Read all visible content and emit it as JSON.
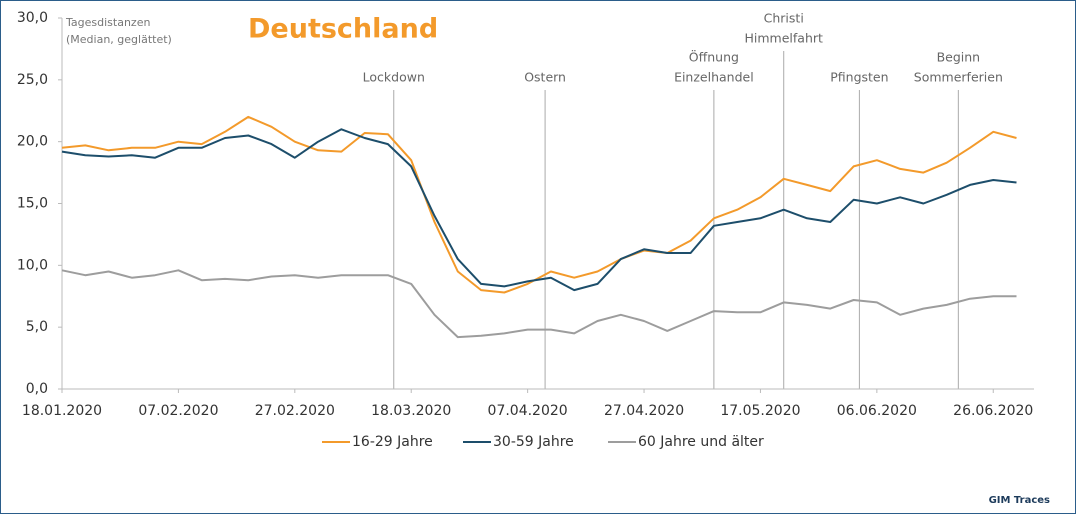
{
  "chart_data": {
    "type": "line",
    "title": "Deutschland",
    "y_axis_label": [
      "Tagesdistanzen",
      "(Median, geglättet)"
    ],
    "source": "GIM Traces",
    "x": [
      "18.01.2020",
      "22.01.2020",
      "26.01.2020",
      "30.01.2020",
      "03.02.2020",
      "07.02.2020",
      "11.02.2020",
      "15.02.2020",
      "19.02.2020",
      "23.02.2020",
      "27.02.2020",
      "02.03.2020",
      "06.03.2020",
      "10.03.2020",
      "14.03.2020",
      "18.03.2020",
      "22.03.2020",
      "26.03.2020",
      "30.03.2020",
      "03.04.2020",
      "07.04.2020",
      "11.04.2020",
      "15.04.2020",
      "19.04.2020",
      "23.04.2020",
      "27.04.2020",
      "01.05.2020",
      "05.05.2020",
      "09.05.2020",
      "13.05.2020",
      "17.05.2020",
      "21.05.2020",
      "25.05.2020",
      "29.05.2020",
      "02.06.2020",
      "06.06.2020",
      "10.06.2020",
      "14.06.2020",
      "18.06.2020",
      "22.06.2020",
      "26.06.2020",
      "30.06.2020"
    ],
    "series": [
      {
        "name": "16-29 Jahre",
        "color": "#f39a2b",
        "values": [
          19.5,
          19.7,
          19.3,
          19.5,
          19.5,
          20.0,
          19.8,
          20.8,
          22.0,
          21.2,
          20.0,
          19.3,
          19.2,
          20.7,
          20.6,
          18.5,
          13.5,
          9.5,
          8.0,
          7.8,
          8.5,
          9.5,
          9.0,
          9.5,
          10.5,
          11.2,
          11.0,
          12.0,
          13.8,
          14.5,
          15.5,
          17.0,
          16.5,
          16.0,
          18.0,
          18.5,
          17.8,
          17.5,
          18.3,
          19.5,
          20.8,
          20.3
        ]
      },
      {
        "name": "30-59 Jahre",
        "color": "#1d4e6b",
        "values": [
          19.2,
          18.9,
          18.8,
          18.9,
          18.7,
          19.5,
          19.5,
          20.3,
          20.5,
          19.8,
          18.7,
          20.0,
          21.0,
          20.3,
          19.8,
          18.0,
          14.0,
          10.5,
          8.5,
          8.3,
          8.7,
          9.0,
          8.0,
          8.5,
          10.5,
          11.3,
          11.0,
          11.0,
          13.2,
          13.5,
          13.8,
          14.5,
          13.8,
          13.5,
          15.3,
          15.0,
          15.5,
          15.0,
          15.7,
          16.5,
          16.9,
          16.7
        ]
      },
      {
        "name": "60 Jahre und älter",
        "color": "#9d9d9d",
        "values": [
          9.6,
          9.2,
          9.5,
          9.0,
          9.2,
          9.6,
          8.8,
          8.9,
          8.8,
          9.1,
          9.2,
          9.0,
          9.2,
          9.2,
          9.2,
          8.5,
          6.0,
          4.2,
          4.3,
          4.5,
          4.8,
          4.8,
          4.5,
          5.5,
          6.0,
          5.5,
          4.7,
          5.5,
          6.3,
          6.2,
          6.2,
          7.0,
          6.8,
          6.5,
          7.2,
          7.0,
          6.0,
          6.5,
          6.8,
          7.3,
          7.5,
          7.5
        ]
      }
    ],
    "xlim": [
      "18.01.2020",
      "03.07.2020"
    ],
    "xticks": [
      "18.01.2020",
      "07.02.2020",
      "27.02.2020",
      "18.03.2020",
      "07.04.2020",
      "27.04.2020",
      "17.05.2020",
      "06.06.2020",
      "26.06.2020"
    ],
    "ylim": [
      0,
      30
    ],
    "yticks": [
      {
        "value": 0,
        "label": "0,0"
      },
      {
        "value": 5,
        "label": "5,0"
      },
      {
        "value": 10,
        "label": "10,0"
      },
      {
        "value": 15,
        "label": "15,0"
      },
      {
        "value": 20,
        "label": "20,0"
      },
      {
        "value": 25,
        "label": "25,0"
      },
      {
        "value": 30,
        "label": "30,0"
      }
    ],
    "annotations": [
      {
        "x": "15.03.2020",
        "text": [
          "Lockdown"
        ]
      },
      {
        "x": "10.04.2020",
        "text": [
          "Ostern"
        ]
      },
      {
        "x": "09.05.2020",
        "text": [
          "Öffnung",
          "Einzelhandel"
        ]
      },
      {
        "x": "21.05.2020",
        "text": [
          "Christi",
          "Himmelfahrt"
        ]
      },
      {
        "x": "03.06.2020",
        "text": [
          "Pfingsten"
        ]
      },
      {
        "x": "20.06.2020",
        "text": [
          "Beginn",
          "Sommerferien"
        ]
      }
    ],
    "legend": "bottom"
  }
}
